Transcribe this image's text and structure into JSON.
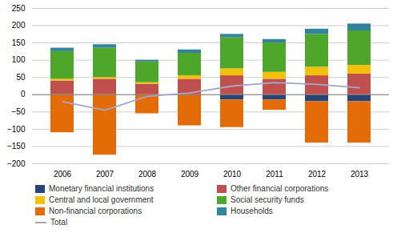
{
  "chart_data": {
    "type": "bar",
    "stacked": true,
    "categories": [
      "2006",
      "2007",
      "2008",
      "2009",
      "2010",
      "2011",
      "2012",
      "2013"
    ],
    "series": [
      {
        "name": "Monetary financial institutions",
        "color": "#264478",
        "values": [
          0,
          0,
          0,
          0,
          -15,
          -15,
          -20,
          -20
        ]
      },
      {
        "name": "Other financial corporations",
        "color": "#C0504D",
        "values": [
          40,
          45,
          30,
          45,
          55,
          45,
          55,
          60
        ]
      },
      {
        "name": "Central and local government",
        "color": "#F4C10A",
        "values": [
          5,
          5,
          5,
          10,
          20,
          20,
          25,
          25
        ]
      },
      {
        "name": "Social security funds",
        "color": "#4EA72A",
        "values": [
          80,
          85,
          60,
          65,
          90,
          85,
          95,
          100
        ]
      },
      {
        "name": "Non-financial corporations",
        "color": "#E36C09",
        "values": [
          -110,
          -175,
          -55,
          -90,
          -80,
          -30,
          -120,
          -120
        ]
      },
      {
        "name": "Households",
        "color": "#31849B",
        "values": [
          10,
          10,
          5,
          10,
          10,
          10,
          15,
          20
        ]
      },
      {
        "name": "Total",
        "type": "line",
        "color": "#A6A6C8",
        "values": [
          -20,
          -45,
          -5,
          5,
          25,
          35,
          30,
          20
        ]
      }
    ],
    "ylim": [
      -200,
      250
    ],
    "yticks": [
      -200,
      -150,
      -100,
      -50,
      0,
      50,
      100,
      150,
      200,
      250
    ],
    "grid": true,
    "legend": "bottom"
  }
}
